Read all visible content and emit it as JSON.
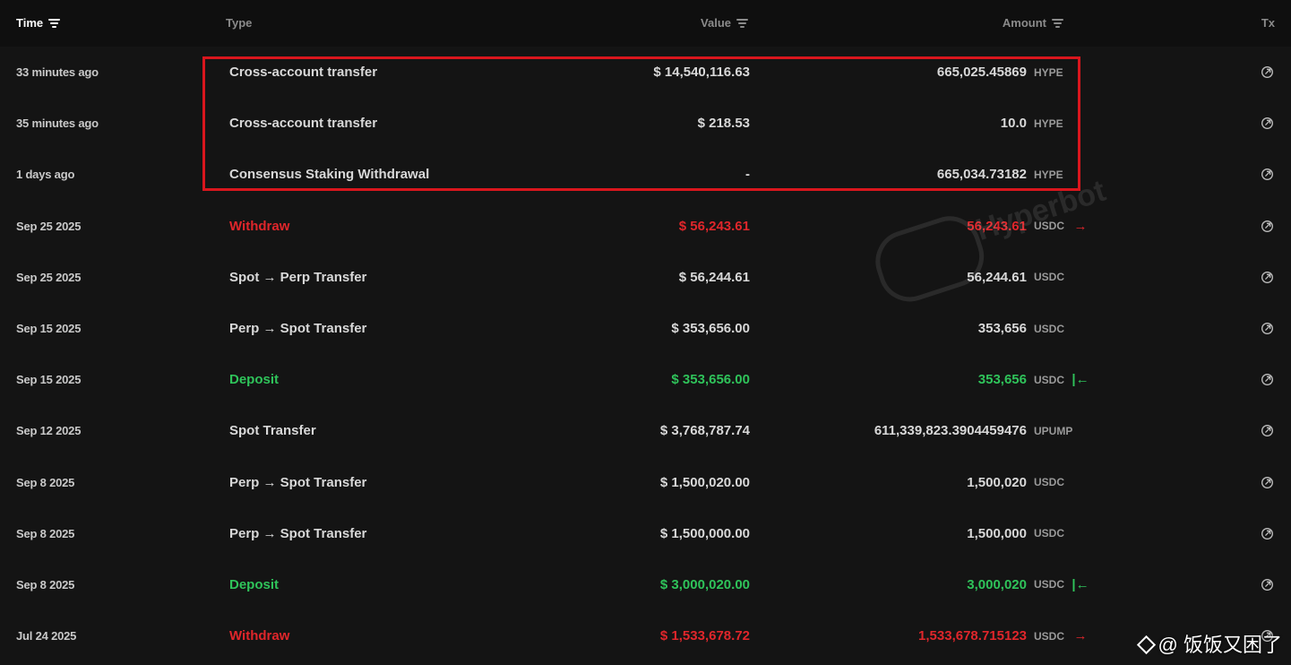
{
  "header": {
    "time": "Time",
    "type": "Type",
    "value": "Value",
    "amount": "Amount",
    "tx": "Tx"
  },
  "colors": {
    "withdraw": "#e0262b",
    "deposit": "#2fc35a",
    "highlight": "#d9161d"
  },
  "rows": [
    {
      "time": "33 minutes ago",
      "type": "Cross-account transfer",
      "value": "$ 14,540,116.63",
      "amount": "665,025.45869",
      "unit": "HYPE",
      "dir": "",
      "kind": "normal"
    },
    {
      "time": "35 minutes ago",
      "type": "Cross-account transfer",
      "value": "$ 218.53",
      "amount": "10.0",
      "unit": "HYPE",
      "dir": "",
      "kind": "normal"
    },
    {
      "time": "1 days ago",
      "type": "Consensus Staking Withdrawal",
      "value": "-",
      "amount": "665,034.73182",
      "unit": "HYPE",
      "dir": "",
      "kind": "normal"
    },
    {
      "time": "Sep 25 2025",
      "type": "Withdraw",
      "value": "$ 56,243.61",
      "amount": "56,243.61",
      "unit": "USDC",
      "dir": "→",
      "kind": "withdraw"
    },
    {
      "time": "Sep 25 2025",
      "type": "Spot → Perp Transfer",
      "value": "$ 56,244.61",
      "amount": "56,244.61",
      "unit": "USDC",
      "dir": "",
      "kind": "normal"
    },
    {
      "time": "Sep 15 2025",
      "type": "Perp → Spot Transfer",
      "value": "$ 353,656.00",
      "amount": "353,656",
      "unit": "USDC",
      "dir": "",
      "kind": "normal"
    },
    {
      "time": "Sep 15 2025",
      "type": "Deposit",
      "value": "$ 353,656.00",
      "amount": "353,656",
      "unit": "USDC",
      "dir": "|←",
      "kind": "deposit"
    },
    {
      "time": "Sep 12 2025",
      "type": "Spot Transfer",
      "value": "$ 3,768,787.74",
      "amount": "611,339,823.3904459476",
      "unit": "UPUMP",
      "dir": "",
      "kind": "normal"
    },
    {
      "time": "Sep 8 2025",
      "type": "Perp → Spot Transfer",
      "value": "$ 1,500,020.00",
      "amount": "1,500,020",
      "unit": "USDC",
      "dir": "",
      "kind": "normal"
    },
    {
      "time": "Sep 8 2025",
      "type": "Perp → Spot Transfer",
      "value": "$ 1,500,000.00",
      "amount": "1,500,000",
      "unit": "USDC",
      "dir": "",
      "kind": "normal"
    },
    {
      "time": "Sep 8 2025",
      "type": "Deposit",
      "value": "$ 3,000,020.00",
      "amount": "3,000,020",
      "unit": "USDC",
      "dir": "|←",
      "kind": "deposit"
    },
    {
      "time": "Jul 24 2025",
      "type": "Withdraw",
      "value": "$ 1,533,678.72",
      "amount": "1,533,678.715123",
      "unit": "USDC",
      "dir": "→",
      "kind": "withdraw"
    }
  ],
  "watermark": "Hyperbot",
  "credit": "@ 饭饭又困了"
}
